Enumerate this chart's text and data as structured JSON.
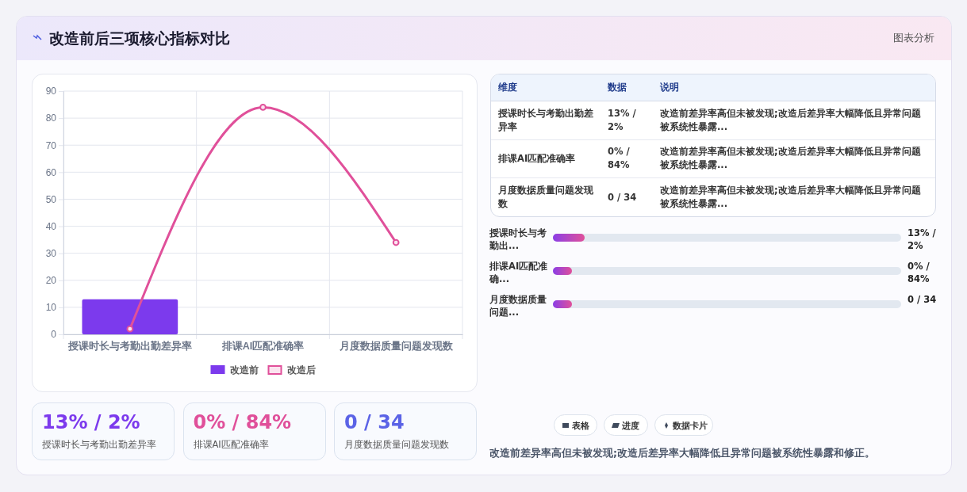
{
  "chart_data": [
    {
      "type": "other",
      "title": "改造前后三项核心指标对比",
      "annotations": [
        "图表分析"
      ]
    },
    {
      "type": "bar",
      "categories": [
        "授课时长与考勤出勤差异率",
        "排课AI匹配准确率",
        "月度数据质量问题发现数"
      ],
      "series": [
        {
          "name": "改造前",
          "color": "#7c3aed",
          "values": [
            13,
            0,
            0
          ]
        },
        {
          "name": "改造后",
          "type": "line",
          "color": "#e0509a",
          "values": [
            2,
            84,
            34
          ]
        }
      ],
      "ylim": [
        0,
        90
      ],
      "yticks": [
        0,
        10,
        20,
        30,
        40,
        50,
        60,
        70,
        80,
        90
      ],
      "grid": true,
      "legend": "bottom",
      "marker": "circle"
    },
    {
      "type": "other",
      "annotations": [
        "维度",
        "数据",
        "说明",
        "授课时长与考勤出勤差异率",
        "13% / 2%",
        "改造前差异率高但未被发现;改造后差异率大幅降低且异常问题被系统性暴露...",
        "排课AI匹配准确率",
        "0% / 84%",
        "改造前差异率高但未被发现;改造后差异率大幅降低且异常问题被系统性暴露...",
        "月度数据质量问题发现数",
        "0 / 34",
        "改造前差异率高但未被发现;改造后差异率大幅降低且异常问题被系统性暴露..."
      ]
    },
    {
      "type": "other",
      "annotations": [
        "授课时长与考勤出...",
        "13% / 2%",
        "排课AI匹配准确...",
        "0% / 84%",
        "月度数据质量问题...",
        "0 / 34"
      ]
    },
    {
      "type": "other",
      "annotations": [
        "13% / 2%",
        "授课时长与考勤出勤差异率",
        "0% / 84%",
        "排课AI匹配准确率",
        "0 / 34",
        "月度数据质量问题发现数"
      ],
      "colors": [
        "#7c3aed",
        "#e0509a",
        "#5b63e6"
      ]
    },
    {
      "type": "other",
      "annotations": [
        "表格",
        "进度",
        "数据卡片",
        "改造前差异率高但未被发现;改造后差异率大幅降低且异常问题被系统性暴露和修正。"
      ]
    }
  ]
}
